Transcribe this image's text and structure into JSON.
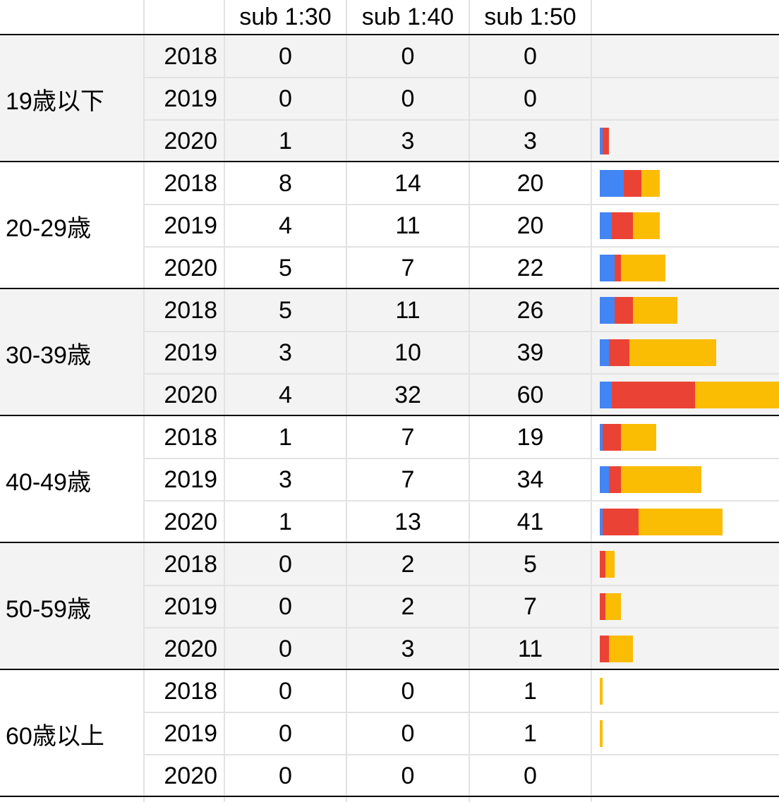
{
  "table": {
    "columns": [
      "sub 1:30",
      "sub 1:40",
      "sub 1:50"
    ],
    "bar_colors": [
      "#4285f4",
      "#ea4335",
      "#fbbc04"
    ],
    "groups": [
      {
        "label": "19歳以下",
        "rows": [
          {
            "year": "2018",
            "values": [
              0,
              0,
              0
            ]
          },
          {
            "year": "2019",
            "values": [
              0,
              0,
              0
            ]
          },
          {
            "year": "2020",
            "values": [
              1,
              3,
              3
            ]
          }
        ]
      },
      {
        "label": "20-29歳",
        "rows": [
          {
            "year": "2018",
            "values": [
              8,
              14,
              20
            ]
          },
          {
            "year": "2019",
            "values": [
              4,
              11,
              20
            ]
          },
          {
            "year": "2020",
            "values": [
              5,
              7,
              22
            ]
          }
        ]
      },
      {
        "label": "30-39歳",
        "rows": [
          {
            "year": "2018",
            "values": [
              5,
              11,
              26
            ]
          },
          {
            "year": "2019",
            "values": [
              3,
              10,
              39
            ]
          },
          {
            "year": "2020",
            "values": [
              4,
              32,
              60
            ]
          }
        ]
      },
      {
        "label": "40-49歳",
        "rows": [
          {
            "year": "2018",
            "values": [
              1,
              7,
              19
            ]
          },
          {
            "year": "2019",
            "values": [
              3,
              7,
              34
            ]
          },
          {
            "year": "2020",
            "values": [
              1,
              13,
              41
            ]
          }
        ]
      },
      {
        "label": "50-59歳",
        "rows": [
          {
            "year": "2018",
            "values": [
              0,
              2,
              5
            ]
          },
          {
            "year": "2019",
            "values": [
              0,
              2,
              7
            ]
          },
          {
            "year": "2020",
            "values": [
              0,
              3,
              11
            ]
          }
        ]
      },
      {
        "label": "60歳以上",
        "rows": [
          {
            "year": "2018",
            "values": [
              0,
              0,
              1
            ]
          },
          {
            "year": "2019",
            "values": [
              0,
              0,
              1
            ]
          },
          {
            "year": "2020",
            "values": [
              0,
              0,
              0
            ]
          }
        ]
      }
    ]
  }
}
